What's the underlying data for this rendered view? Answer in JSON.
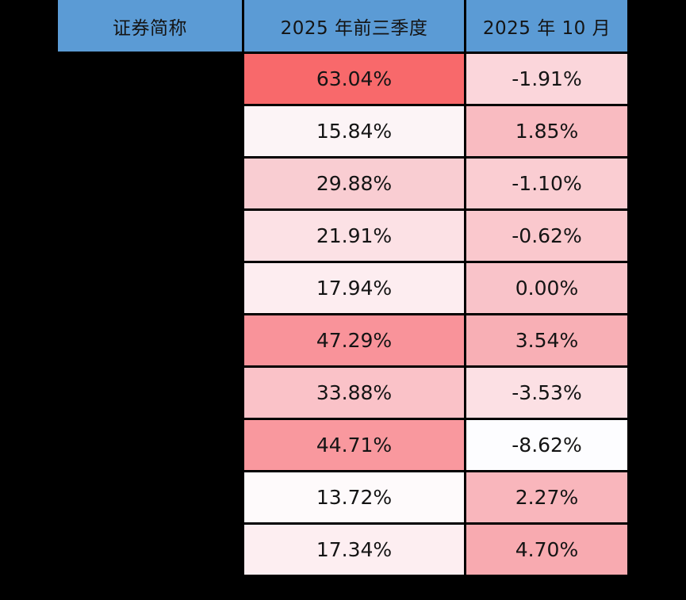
{
  "page": {
    "background": "#000000",
    "grid_line_color": "#000000",
    "text_color": "#141414"
  },
  "table": {
    "header": {
      "bg": "#5B9BD5",
      "security_name_label": "证券简称",
      "q3_label": "2025 年前三季度",
      "oct_label": "2025 年 10 月"
    },
    "rows": [
      {
        "name": "",
        "q3": "63.04%",
        "q3_bg": "#F8696B",
        "oct": "-1.91%",
        "oct_bg": "#FBD6DB"
      },
      {
        "name": "",
        "q3": "15.84%",
        "q3_bg": "#FCF4F6",
        "oct": "1.85%",
        "oct_bg": "#F9BBC1"
      },
      {
        "name": "",
        "q3": "29.88%",
        "q3_bg": "#F9CDD2",
        "oct": "-1.10%",
        "oct_bg": "#FACDD2"
      },
      {
        "name": "",
        "q3": "21.91%",
        "q3_bg": "#FCE1E5",
        "oct": "-0.62%",
        "oct_bg": "#FAC8CD"
      },
      {
        "name": "",
        "q3": "17.94%",
        "q3_bg": "#FDEDF0",
        "oct": "0.00%",
        "oct_bg": "#F9C3C9"
      },
      {
        "name": "",
        "q3": "47.29%",
        "q3_bg": "#F9939A",
        "oct": "3.54%",
        "oct_bg": "#F8AFB5"
      },
      {
        "name": "",
        "q3": "33.88%",
        "q3_bg": "#FAC2C8",
        "oct": "-3.53%",
        "oct_bg": "#FCE0E4"
      },
      {
        "name": "",
        "q3": "44.71%",
        "q3_bg": "#F9989E",
        "oct": "-8.62%",
        "oct_bg": "#FDFDFF"
      },
      {
        "name": "",
        "q3": "13.72%",
        "q3_bg": "#FEFAFB",
        "oct": "2.27%",
        "oct_bg": "#F9B6BC"
      },
      {
        "name": "",
        "q3": "17.34%",
        "q3_bg": "#FDEEF1",
        "oct": "4.70%",
        "oct_bg": "#F8AAB0"
      }
    ]
  },
  "chart_data": {
    "type": "table",
    "title": "",
    "columns": [
      "证券简称",
      "2025 年前三季度",
      "2025 年 10 月"
    ],
    "categories": [
      "",
      "",
      "",
      "",
      "",
      "",
      "",
      "",
      "",
      ""
    ],
    "series": [
      {
        "name": "2025 年前三季度",
        "unit": "%",
        "values": [
          63.04,
          15.84,
          29.88,
          21.91,
          17.94,
          47.29,
          33.88,
          44.71,
          13.72,
          17.34
        ]
      },
      {
        "name": "2025 年 10 月",
        "unit": "%",
        "values": [
          -1.91,
          1.85,
          -1.1,
          -0.62,
          0.0,
          3.54,
          -3.53,
          -8.62,
          2.27,
          4.7
        ]
      }
    ],
    "layout_hints": {
      "style": "heatmap-shaded cells, white (low) to red #F8696B (high)",
      "header_bg": "#5B9BD5",
      "first_column_content_hidden": true,
      "background": "black"
    }
  }
}
